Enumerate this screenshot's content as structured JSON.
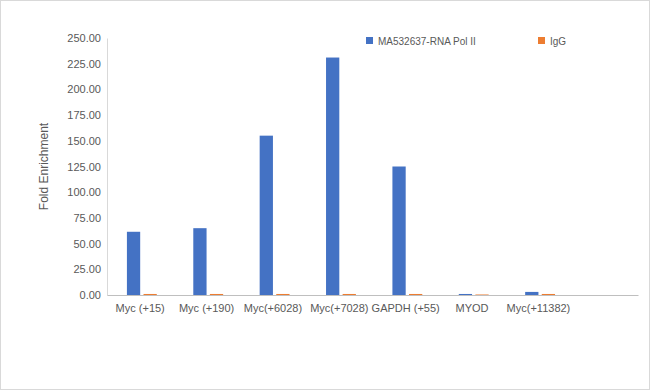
{
  "chart_data": {
    "type": "bar",
    "y_label": "Fold Enrichment",
    "categories": [
      "Myc (+15)",
      "Myc (+190)",
      "Myc(+6028)",
      "Myc(+7028)",
      "GAPDH (+55)",
      "MYOD",
      "Myc(+11382)",
      null
    ],
    "series": [
      {
        "name": "MA532637-RNA Pol II",
        "color": "#4472c4",
        "values": [
          61.5,
          65,
          155,
          231,
          125,
          1,
          3,
          null
        ]
      },
      {
        "name": "IgG",
        "color": "#ed7d31",
        "values": [
          1,
          1,
          1,
          1,
          1,
          0.5,
          1,
          null
        ]
      }
    ],
    "ylim": [
      0,
      250
    ],
    "yticks": [
      {
        "value": 0,
        "label": "0.00"
      },
      {
        "value": 25,
        "label": "25.00"
      },
      {
        "value": 50,
        "label": "50.00"
      },
      {
        "value": 75,
        "label": "75.00"
      },
      {
        "value": 100,
        "label": "100.00"
      },
      {
        "value": 125,
        "label": "125.00"
      },
      {
        "value": 150,
        "label": "150.00"
      },
      {
        "value": 175,
        "label": "175.00"
      },
      {
        "value": 200,
        "label": "200.00"
      },
      {
        "value": 225,
        "label": "225.00"
      },
      {
        "value": 250,
        "label": "250.00"
      }
    ],
    "grid": false,
    "legend": "top"
  }
}
